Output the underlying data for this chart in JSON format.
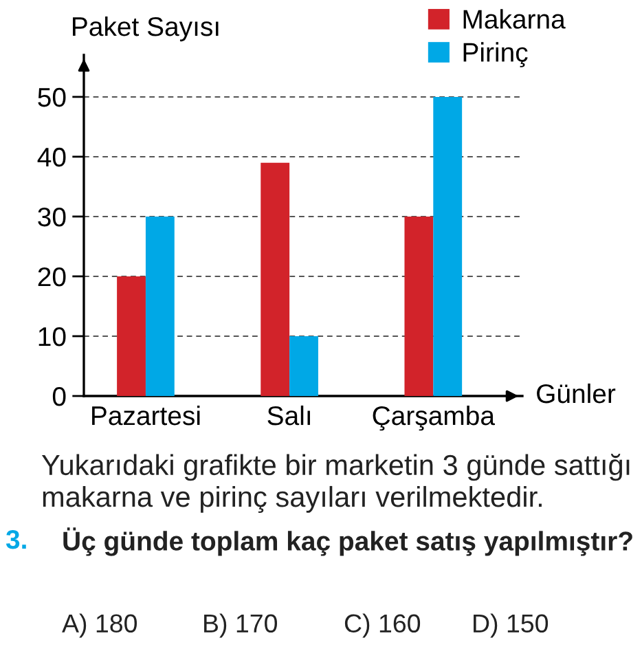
{
  "chart_data": {
    "type": "bar",
    "ylabel": "Paket Sayısı",
    "xlabel": "Günler",
    "categories": [
      "Pazartesi",
      "Salı",
      "Çarşamba"
    ],
    "series": [
      {
        "name": "Makarna",
        "color": "#d2232a",
        "values": [
          20,
          39,
          30
        ]
      },
      {
        "name": "Pirinç",
        "color": "#00a8e6",
        "values": [
          30,
          10,
          50
        ]
      }
    ],
    "ylim": [
      0,
      57
    ],
    "yticks": [
      0,
      10,
      20,
      30,
      40,
      50
    ],
    "grid": "y",
    "legend": "top right",
    "annotations": [
      "Yukarıdaki grafikte bir marketin 3 günde sattığı\nmakarna ve pirinç sayıları verilmektedir.",
      "3.",
      "Üç günde toplam kaç paket satış yapılmıştır?",
      "A) 180",
      "B) 170",
      "C) 160",
      "D) 150"
    ]
  }
}
